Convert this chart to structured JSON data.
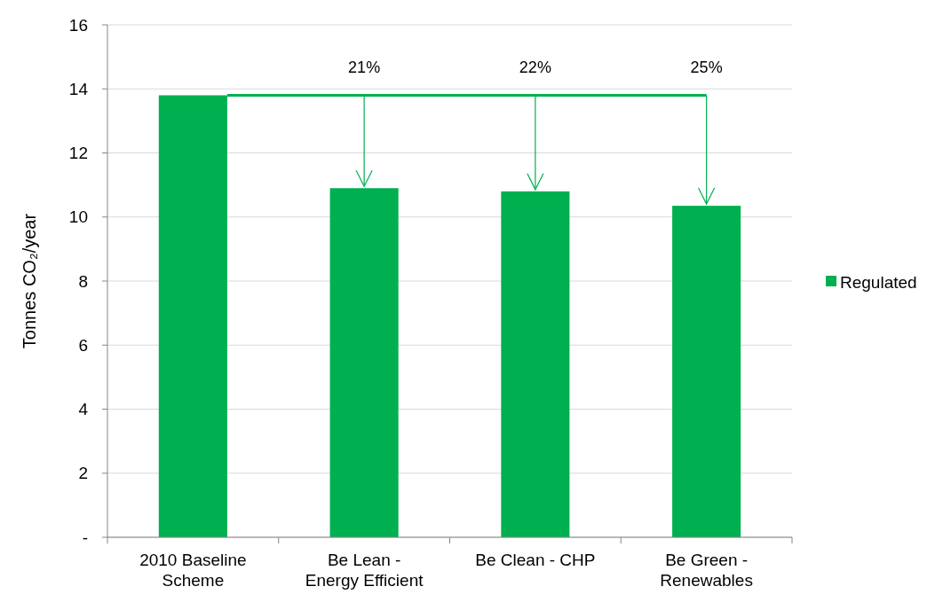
{
  "chart_data": {
    "type": "bar",
    "ylabel": "Tonnes CO₂/year",
    "categories": [
      "2010 Baseline\nScheme",
      "Be Lean -\nEnergy Efficient",
      "Be Clean - CHP",
      "Be Green -\nRenewables"
    ],
    "series": [
      {
        "name": "Regulated",
        "color": "#00b050",
        "values": [
          13.8,
          10.9,
          10.8,
          10.35
        ]
      }
    ],
    "ylim": [
      0,
      16
    ],
    "yticks": [
      {
        "value": 0,
        "label": "-"
      },
      2,
      4,
      6,
      8,
      10,
      12,
      14,
      16
    ],
    "grid": "y",
    "legend": "right",
    "annotations": [
      {
        "text": "21%",
        "x": "Be Lean -\nEnergy Efficient",
        "y": 10.9
      },
      {
        "text": "22%",
        "x": "Be Clean - CHP",
        "y": 10.8
      },
      {
        "text": "25%",
        "x": "Be Green -\nRenewables",
        "y": 10.35
      }
    ]
  }
}
